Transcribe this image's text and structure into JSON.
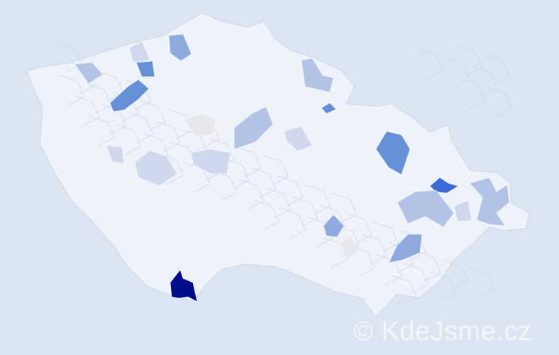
{
  "map": {
    "country_fill": "#eef2fa",
    "border_color": "#ccd5e6",
    "background": "#dce6f2",
    "scale_colors": {
      "max": "#000c8a",
      "high": "#3a6ad6",
      "medium_high": "#6590d8",
      "medium": "#8faadf",
      "low": "#b2c3e6",
      "very_low": "#cfd8ec",
      "minimal": "#e6e8ee"
    }
  },
  "watermark": "© KdeJsme.cz"
}
